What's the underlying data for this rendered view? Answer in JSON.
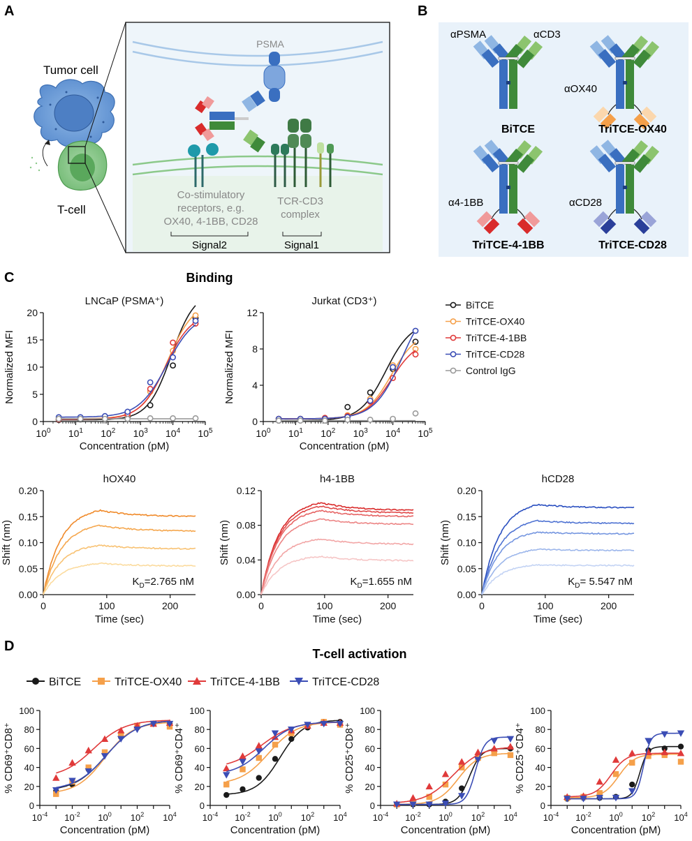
{
  "colors": {
    "bitce": "#1a1a1a",
    "ox40": "#f5a04a",
    "bb41": "#e03a3a",
    "cd28": "#3b4db5",
    "ctrl": "#9a9a9a",
    "blue_dark": "#3a6fc0",
    "blue_light": "#8fb6e3",
    "green_dark": "#3f8a3a",
    "green_light": "#8cc46e",
    "panelA_bg": "#eef5fa",
    "panelB_bg": "#e9f2fa"
  },
  "panels": {
    "A": {
      "letter": "A",
      "tumor_label": "Tumor cell",
      "tcell_label": "T-cell",
      "psma_label": "PSMA",
      "costim_label_1": "Co-stimulatory",
      "costim_label_2": "receptors, e.g.",
      "costim_label_3": "OX40, 4-1BB, CD28",
      "tcr_label_1": "TCR-CD3",
      "tcr_label_2": "complex",
      "signal2": "Signal2",
      "signal1": "Signal1"
    },
    "B": {
      "letter": "B",
      "apsma": "αPSMA",
      "acd3": "αCD3",
      "aox40": "αOX40",
      "a41bb": "α4-1BB",
      "acd28": "αCD28",
      "names": [
        "BiTCE",
        "TriTCE-OX40",
        "TriTCE-4-1BB",
        "TriTCE-CD28"
      ]
    },
    "C": {
      "letter": "C",
      "heading": "Binding"
    },
    "D": {
      "letter": "D",
      "heading": "T-cell activation"
    }
  },
  "chart_data": [
    {
      "type": "scatter",
      "title": "LNCaP (PSMA⁺)",
      "xlabel": "Concentration (pM)",
      "ylabel": "Normalized MFI",
      "xscale": "log",
      "xlim": [
        1,
        100000
      ],
      "ylim": [
        0,
        20
      ],
      "yticks": [
        0,
        5,
        10,
        15,
        20
      ],
      "xtick_exponents": [
        0,
        1,
        2,
        3,
        4,
        5
      ],
      "x": [
        3,
        14,
        80,
        400,
        2000,
        10000,
        50000
      ],
      "series": [
        {
          "name": "BiTCE",
          "values": [
            0.3,
            0.4,
            0.5,
            0.7,
            3.0,
            10.3,
            19.0
          ]
        },
        {
          "name": "TriTCE-OX40",
          "values": [
            0.5,
            0.6,
            0.8,
            1.2,
            5.5,
            13.0,
            19.5
          ]
        },
        {
          "name": "TriTCE-4-1BB",
          "values": [
            0.4,
            0.6,
            0.8,
            1.4,
            6.0,
            14.5,
            18.0
          ]
        },
        {
          "name": "TriTCE-CD28",
          "values": [
            0.8,
            0.8,
            1.0,
            1.8,
            7.2,
            11.8,
            18.5
          ]
        },
        {
          "name": "Control IgG",
          "values": [
            0.5,
            0.5,
            0.5,
            0.5,
            0.6,
            0.6,
            0.6
          ]
        }
      ]
    },
    {
      "type": "scatter",
      "title": "Jurkat (CD3⁺)",
      "xlabel": "Concentration (pM)",
      "ylabel": "Normalized MFI",
      "xscale": "log",
      "xlim": [
        1,
        100000
      ],
      "ylim": [
        0,
        12
      ],
      "yticks": [
        0,
        4,
        8,
        12
      ],
      "xtick_exponents": [
        0,
        1,
        2,
        3,
        4,
        5
      ],
      "x": [
        3,
        14,
        80,
        400,
        2000,
        10000,
        50000
      ],
      "series": [
        {
          "name": "BiTCE",
          "values": [
            0.1,
            0.2,
            0.3,
            1.6,
            3.2,
            5.8,
            8.8
          ]
        },
        {
          "name": "TriTCE-OX40",
          "values": [
            0.3,
            0.3,
            0.4,
            0.7,
            2.5,
            6.2,
            8.0
          ]
        },
        {
          "name": "TriTCE-4-1BB",
          "values": [
            0.3,
            0.3,
            0.4,
            0.6,
            2.2,
            4.8,
            7.4
          ]
        },
        {
          "name": "TriTCE-CD28",
          "values": [
            0.3,
            0.3,
            0.3,
            0.5,
            2.3,
            6.0,
            10.0
          ]
        },
        {
          "name": "Control IgG",
          "values": [
            0.1,
            0.1,
            0.1,
            0.2,
            0.2,
            0.3,
            0.9
          ]
        }
      ],
      "legend_position": "right",
      "legend_entries": [
        "BiTCE",
        "TriTCE-OX40",
        "TriTCE-4-1BB",
        "TriTCE-CD28",
        "Control IgG"
      ]
    },
    {
      "type": "line",
      "title": "hOX40",
      "xlabel": "Time (sec)",
      "ylabel": "Shift (nm)",
      "xlim": [
        0,
        240
      ],
      "ylim": [
        0,
        0.2
      ],
      "yticks": [
        "0.00",
        "0.05",
        "0.10",
        "0.15",
        "0.20"
      ],
      "xticks": [
        0,
        100,
        200
      ],
      "association_end": 90,
      "plateaus": [
        0.162,
        0.133,
        0.095,
        0.06
      ],
      "ends": [
        0.15,
        0.122,
        0.088,
        0.055
      ],
      "colors": [
        "#f08a2a",
        "#f5a74e",
        "#f8c273",
        "#fbdb9e"
      ],
      "annotation_k": "K",
      "annotation_sub": "D",
      "annotation_rest": "=2.765 nM"
    },
    {
      "type": "line",
      "title": "h4-1BB",
      "xlabel": "Time (sec)",
      "ylabel": "Shift (nm)",
      "xlim": [
        0,
        240
      ],
      "ylim": [
        0,
        0.12
      ],
      "yticks": [
        "0.00",
        "0.04",
        "0.08",
        "0.12"
      ],
      "xticks": [
        0,
        100,
        200
      ],
      "association_end": 95,
      "plateaus": [
        0.106,
        0.102,
        0.097,
        0.087,
        0.064,
        0.044
      ],
      "ends": [
        0.097,
        0.094,
        0.09,
        0.081,
        0.058,
        0.039
      ],
      "colors": [
        "#d92b2b",
        "#e04848",
        "#e66464",
        "#ec8484",
        "#f2a6a6",
        "#f6c6c6"
      ],
      "annotation_k": "K",
      "annotation_sub": "D",
      "annotation_rest": "=1.655 nM"
    },
    {
      "type": "line",
      "title": "hCD28",
      "xlabel": "Time (sec)",
      "ylabel": "Shift (nm)",
      "xlim": [
        0,
        240
      ],
      "ylim": [
        0,
        0.2
      ],
      "yticks": [
        "0.00",
        "0.05",
        "0.10",
        "0.15",
        "0.20"
      ],
      "xticks": [
        0,
        100,
        200
      ],
      "association_end": 88,
      "plateaus": [
        0.173,
        0.142,
        0.12,
        0.087,
        0.057
      ],
      "ends": [
        0.167,
        0.137,
        0.117,
        0.085,
        0.056
      ],
      "colors": [
        "#2a4fc0",
        "#4e72d2",
        "#7596e0",
        "#9cb6eb",
        "#c3d3f4"
      ],
      "annotation_k": "K",
      "annotation_sub": "D",
      "annotation_rest": "= 5.547 nM"
    },
    {
      "type": "scatter",
      "ylabel": "% CD69⁺CD8⁺",
      "xlabel": "Concentration (pM)",
      "xscale": "log",
      "ylim": [
        0,
        100
      ],
      "yticks": [
        0,
        20,
        40,
        60,
        80,
        100
      ],
      "xtick_exponents": [
        -4,
        -2,
        0,
        2,
        4
      ],
      "x": [
        0.001,
        0.01,
        0.1,
        1,
        10,
        100,
        1000,
        10000
      ],
      "series": [
        {
          "name": "BiTCE",
          "values": [
            15,
            22,
            38,
            55,
            72,
            82,
            86,
            86
          ]
        },
        {
          "name": "TriTCE-OX40",
          "values": [
            12,
            25,
            40,
            56,
            74,
            84,
            86,
            83
          ]
        },
        {
          "name": "TriTCE-4-1BB",
          "values": [
            29,
            45,
            58,
            70,
            79,
            84,
            86,
            87
          ]
        },
        {
          "name": "TriTCE-CD28",
          "values": [
            16,
            26,
            36,
            52,
            70,
            80,
            86,
            86
          ]
        }
      ],
      "legend_entries": [
        "BiTCE",
        "TriTCE-OX40",
        "TriTCE-4-1BB",
        "TriTCE-CD28"
      ],
      "legend_position": "top"
    },
    {
      "type": "scatter",
      "ylabel": "% CD69⁺CD4⁺",
      "xlabel": "Concentration (pM)",
      "xscale": "log",
      "ylim": [
        0,
        100
      ],
      "yticks": [
        0,
        20,
        40,
        60,
        80,
        100
      ],
      "xtick_exponents": [
        -4,
        -2,
        0,
        2,
        4
      ],
      "x": [
        0.001,
        0.01,
        0.1,
        1,
        10,
        100,
        1000,
        10000
      ],
      "series": [
        {
          "name": "BiTCE",
          "values": [
            11,
            17,
            29,
            49,
            70,
            82,
            88,
            88
          ]
        },
        {
          "name": "TriTCE-OX40",
          "values": [
            22,
            38,
            50,
            64,
            76,
            84,
            88,
            85
          ]
        },
        {
          "name": "TriTCE-4-1BB",
          "values": [
            39,
            52,
            63,
            72,
            79,
            84,
            87,
            87
          ]
        },
        {
          "name": "TriTCE-CD28",
          "values": [
            32,
            46,
            57,
            76,
            80,
            85,
            86,
            86
          ]
        }
      ]
    },
    {
      "type": "scatter",
      "ylabel": "% CD25⁺CD8⁺",
      "xlabel": "Concentration (pM)",
      "xscale": "log",
      "ylim": [
        0,
        100
      ],
      "yticks": [
        0,
        20,
        40,
        60,
        80,
        100
      ],
      "xtick_exponents": [
        -4,
        -2,
        0,
        2,
        4
      ],
      "x": [
        0.001,
        0.01,
        0.1,
        1,
        10,
        100,
        1000,
        10000
      ],
      "series": [
        {
          "name": "BiTCE",
          "values": [
            1,
            1,
            1,
            4,
            18,
            52,
            58,
            60
          ]
        },
        {
          "name": "TriTCE-OX40",
          "values": [
            1,
            3,
            9,
            22,
            40,
            50,
            55,
            53
          ]
        },
        {
          "name": "TriTCE-4-1BB",
          "values": [
            2,
            8,
            20,
            33,
            46,
            56,
            60,
            62
          ]
        },
        {
          "name": "TriTCE-CD28",
          "values": [
            1,
            1,
            1,
            2,
            10,
            48,
            68,
            70
          ]
        }
      ]
    },
    {
      "type": "scatter",
      "ylabel": "% CD25⁺CD4⁺",
      "xlabel": "Concentration (pM)",
      "xscale": "log",
      "ylim": [
        0,
        100
      ],
      "yticks": [
        0,
        20,
        40,
        60,
        80,
        100
      ],
      "xtick_exponents": [
        -4,
        -2,
        0,
        2,
        4
      ],
      "x": [
        0.001,
        0.01,
        0.1,
        1,
        10,
        100,
        1000,
        10000
      ],
      "series": [
        {
          "name": "BiTCE",
          "values": [
            7,
            8,
            8,
            9,
            22,
            58,
            60,
            62
          ]
        },
        {
          "name": "TriTCE-OX40",
          "values": [
            8,
            9,
            13,
            33,
            45,
            52,
            53,
            46
          ]
        },
        {
          "name": "TriTCE-4-1BB",
          "values": [
            9,
            10,
            25,
            48,
            55,
            56,
            56,
            55
          ]
        },
        {
          "name": "TriTCE-CD28",
          "values": [
            7,
            7,
            8,
            8,
            15,
            68,
            75,
            76
          ]
        }
      ]
    }
  ]
}
